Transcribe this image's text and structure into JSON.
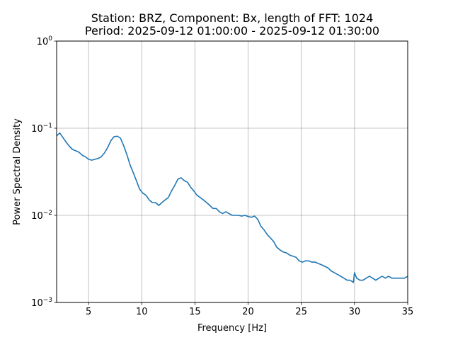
{
  "chart_data": {
    "type": "line",
    "title": "Station: BRZ, Component: Bx, length of FFT: 1024",
    "subtitle": "Period: 2025-09-12 01:00:00 - 2025-09-12 01:30:00",
    "xlabel": "Frequency [Hz]",
    "ylabel": "Power Spectral Density",
    "xlim": [
      2,
      35
    ],
    "ylim": [
      0.001,
      1
    ],
    "yscale": "log",
    "grid": true,
    "line_color": "#1f77b4",
    "x_ticks": [
      {
        "value": 5,
        "label": "5"
      },
      {
        "value": 10,
        "label": "10"
      },
      {
        "value": 15,
        "label": "15"
      },
      {
        "value": 20,
        "label": "20"
      },
      {
        "value": 25,
        "label": "25"
      },
      {
        "value": 30,
        "label": "30"
      },
      {
        "value": 35,
        "label": "35"
      }
    ],
    "y_ticks": [
      {
        "value": 0.001,
        "base": "10",
        "exp": "−3"
      },
      {
        "value": 0.01,
        "base": "10",
        "exp": "−2"
      },
      {
        "value": 0.1,
        "base": "10",
        "exp": "−1"
      },
      {
        "value": 1,
        "base": "10",
        "exp": "0"
      }
    ],
    "series": [
      {
        "x": [
          2.0,
          2.3,
          2.6,
          2.9,
          3.2,
          3.5,
          3.8,
          4.1,
          4.4,
          4.7,
          5.0,
          5.3,
          5.6,
          5.9,
          6.2,
          6.5,
          6.8,
          7.1,
          7.4,
          7.7,
          8.0,
          8.3,
          8.6,
          8.9,
          9.2,
          9.5,
          9.8,
          10.1,
          10.4,
          10.7,
          11.0,
          11.3,
          11.6,
          11.9,
          12.2,
          12.5,
          12.8,
          13.1,
          13.4,
          13.7,
          14.0,
          14.3,
          14.6,
          14.9,
          15.2,
          15.5,
          15.8,
          16.1,
          16.4,
          16.7,
          17.0,
          17.3,
          17.6,
          17.9,
          18.2,
          18.5,
          18.8,
          19.1,
          19.4,
          19.7,
          20.0,
          20.3,
          20.6,
          20.9,
          21.2,
          21.5,
          21.8,
          22.1,
          22.4,
          22.7,
          23.0,
          23.3,
          23.6,
          23.9,
          24.2,
          24.5,
          24.8,
          25.1,
          25.4,
          25.7,
          26.0,
          26.3,
          26.6,
          26.9,
          27.2,
          27.5,
          27.8,
          28.1,
          28.4,
          28.7,
          29.0,
          29.3,
          29.6,
          29.9,
          30.0,
          30.2,
          30.5,
          30.8,
          31.1,
          31.4,
          31.7,
          32.0,
          32.3,
          32.6,
          32.9,
          33.2,
          33.5,
          33.8,
          34.1,
          34.4,
          34.7,
          35.0
        ],
        "y": [
          0.082,
          0.088,
          0.078,
          0.069,
          0.062,
          0.057,
          0.055,
          0.053,
          0.049,
          0.047,
          0.044,
          0.043,
          0.044,
          0.045,
          0.047,
          0.052,
          0.06,
          0.072,
          0.08,
          0.081,
          0.077,
          0.063,
          0.05,
          0.038,
          0.031,
          0.025,
          0.02,
          0.018,
          0.017,
          0.015,
          0.014,
          0.014,
          0.013,
          0.014,
          0.015,
          0.016,
          0.019,
          0.022,
          0.026,
          0.027,
          0.025,
          0.024,
          0.021,
          0.019,
          0.017,
          0.016,
          0.015,
          0.014,
          0.013,
          0.012,
          0.012,
          0.011,
          0.0105,
          0.011,
          0.0105,
          0.01,
          0.01,
          0.01,
          0.0098,
          0.01,
          0.0097,
          0.0095,
          0.0098,
          0.009,
          0.0075,
          0.0068,
          0.006,
          0.0055,
          0.005,
          0.0043,
          0.004,
          0.0038,
          0.0037,
          0.0035,
          0.0034,
          0.0033,
          0.003,
          0.0029,
          0.003,
          0.003,
          0.0029,
          0.0029,
          0.0028,
          0.0027,
          0.0026,
          0.0025,
          0.0023,
          0.0022,
          0.0021,
          0.002,
          0.0019,
          0.0018,
          0.0018,
          0.0017,
          0.0022,
          0.0019,
          0.0018,
          0.0018,
          0.0019,
          0.002,
          0.0019,
          0.0018,
          0.0019,
          0.002,
          0.0019,
          0.002,
          0.0019,
          0.0019,
          0.0019,
          0.0019,
          0.0019,
          0.002
        ]
      }
    ]
  }
}
